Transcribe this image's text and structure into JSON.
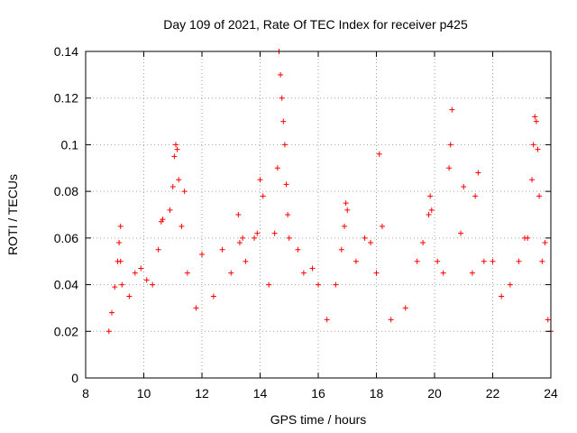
{
  "chart_data": {
    "type": "scatter",
    "title": "Day 109 of 2021, Rate Of TEC Index for receiver p425",
    "xlabel": "GPS time / hours",
    "ylabel": "ROTI / TECUs",
    "xlim": [
      8,
      24
    ],
    "ylim": [
      0,
      0.14
    ],
    "xticks": [
      8,
      10,
      12,
      14,
      16,
      18,
      20,
      22,
      24
    ],
    "yticks": [
      0,
      0.02,
      0.04,
      0.06,
      0.08,
      0.1,
      0.12,
      0.14
    ],
    "ytick_labels": [
      "0",
      "0.02",
      "0.04",
      "0.06",
      "0.08",
      "0.1",
      "0.12",
      "0.14"
    ],
    "grid": true,
    "marker": "+",
    "color": "#ff0000",
    "points_note": "Dense cloud of '+' markers; values below are representative reads from the plot.",
    "series": [
      {
        "name": "ROTI",
        "points": [
          [
            8.8,
            0.02
          ],
          [
            8.9,
            0.028
          ],
          [
            9.0,
            0.039
          ],
          [
            9.1,
            0.05
          ],
          [
            9.15,
            0.058
          ],
          [
            9.2,
            0.065
          ],
          [
            9.2,
            0.05
          ],
          [
            9.25,
            0.04
          ],
          [
            9.5,
            0.035
          ],
          [
            9.7,
            0.045
          ],
          [
            9.9,
            0.047
          ],
          [
            10.1,
            0.042
          ],
          [
            10.3,
            0.04
          ],
          [
            10.5,
            0.055
          ],
          [
            10.6,
            0.067
          ],
          [
            10.65,
            0.068
          ],
          [
            10.9,
            0.072
          ],
          [
            11.0,
            0.082
          ],
          [
            11.05,
            0.095
          ],
          [
            11.1,
            0.1
          ],
          [
            11.15,
            0.098
          ],
          [
            11.2,
            0.085
          ],
          [
            11.3,
            0.065
          ],
          [
            11.4,
            0.08
          ],
          [
            11.5,
            0.045
          ],
          [
            11.8,
            0.03
          ],
          [
            12.0,
            0.053
          ],
          [
            12.4,
            0.035
          ],
          [
            12.7,
            0.055
          ],
          [
            13.0,
            0.045
          ],
          [
            13.25,
            0.07
          ],
          [
            13.3,
            0.058
          ],
          [
            13.4,
            0.06
          ],
          [
            13.5,
            0.05
          ],
          [
            13.8,
            0.06
          ],
          [
            13.9,
            0.062
          ],
          [
            14.0,
            0.085
          ],
          [
            14.1,
            0.078
          ],
          [
            14.3,
            0.04
          ],
          [
            14.5,
            0.062
          ],
          [
            14.6,
            0.09
          ],
          [
            14.65,
            0.14
          ],
          [
            14.7,
            0.13
          ],
          [
            14.75,
            0.12
          ],
          [
            14.8,
            0.11
          ],
          [
            14.85,
            0.1
          ],
          [
            14.9,
            0.083
          ],
          [
            14.95,
            0.07
          ],
          [
            15.0,
            0.06
          ],
          [
            15.3,
            0.055
          ],
          [
            15.5,
            0.045
          ],
          [
            15.8,
            0.047
          ],
          [
            16.0,
            0.04
          ],
          [
            16.3,
            0.025
          ],
          [
            16.6,
            0.04
          ],
          [
            16.8,
            0.055
          ],
          [
            16.9,
            0.065
          ],
          [
            16.95,
            0.075
          ],
          [
            17.0,
            0.072
          ],
          [
            17.3,
            0.05
          ],
          [
            17.6,
            0.06
          ],
          [
            17.8,
            0.058
          ],
          [
            18.0,
            0.045
          ],
          [
            18.1,
            0.096
          ],
          [
            18.2,
            0.065
          ],
          [
            18.5,
            0.025
          ],
          [
            19.0,
            0.03
          ],
          [
            19.4,
            0.05
          ],
          [
            19.6,
            0.058
          ],
          [
            19.8,
            0.07
          ],
          [
            19.85,
            0.078
          ],
          [
            19.9,
            0.072
          ],
          [
            20.1,
            0.05
          ],
          [
            20.3,
            0.045
          ],
          [
            20.5,
            0.09
          ],
          [
            20.55,
            0.1
          ],
          [
            20.6,
            0.115
          ],
          [
            20.9,
            0.062
          ],
          [
            21.0,
            0.082
          ],
          [
            21.3,
            0.045
          ],
          [
            21.4,
            0.078
          ],
          [
            21.5,
            0.088
          ],
          [
            21.7,
            0.05
          ],
          [
            22.0,
            0.05
          ],
          [
            22.3,
            0.035
          ],
          [
            22.6,
            0.04
          ],
          [
            22.9,
            0.05
          ],
          [
            23.1,
            0.06
          ],
          [
            23.2,
            0.06
          ],
          [
            23.35,
            0.085
          ],
          [
            23.4,
            0.1
          ],
          [
            23.45,
            0.112
          ],
          [
            23.5,
            0.11
          ],
          [
            23.55,
            0.098
          ],
          [
            23.6,
            0.078
          ],
          [
            23.7,
            0.05
          ],
          [
            23.8,
            0.058
          ],
          [
            23.9,
            0.025
          ],
          [
            24.0,
            0.02
          ]
        ]
      }
    ]
  }
}
